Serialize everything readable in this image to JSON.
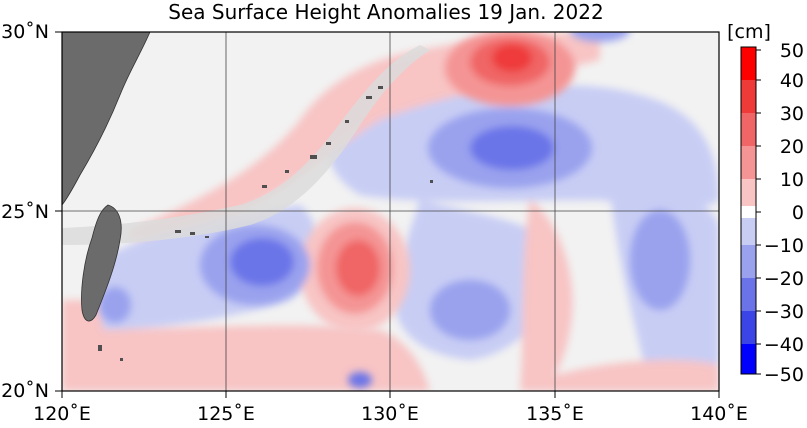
{
  "title": "Sea Surface Height Anomalies  19 Jan. 2022",
  "map": {
    "lon_labels": [
      "120˚E",
      "125˚E",
      "130˚E",
      "135˚E",
      "140˚E"
    ],
    "lat_labels": [
      "30˚N",
      "25˚N",
      "20˚N"
    ],
    "lon_range": [
      120,
      140
    ],
    "lat_range": [
      20,
      30
    ]
  },
  "colorbar": {
    "unit": "[cm]",
    "ticks": [
      "50",
      "40",
      "30",
      "20",
      "10",
      "0",
      "−10",
      "−20",
      "−30",
      "−40",
      "−50"
    ],
    "colors": {
      "pos50": "#ff0000",
      "pos40": "#ef3a3a",
      "pos30": "#f06565",
      "pos20": "#f49494",
      "pos10": "#f8c4c4",
      "zero": "#ffffff",
      "neg10": "#c8cdf4",
      "neg20": "#9aa2ee",
      "neg30": "#6a74e8",
      "neg40": "#3b44e4",
      "neg50": "#0000ff"
    }
  },
  "colors": {
    "land": "#6b6b6b",
    "coast_gray": "#dcdcdc",
    "ocean_base": "#f2f2f2"
  }
}
